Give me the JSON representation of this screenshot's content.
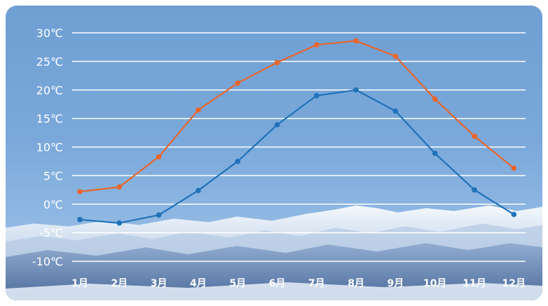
{
  "chart_data": {
    "type": "line",
    "categories": [
      "1月",
      "2月",
      "3月",
      "4月",
      "5月",
      "6月",
      "7月",
      "8月",
      "9月",
      "10月",
      "11月",
      "12月"
    ],
    "series": [
      {
        "values": [
          2.2,
          3.0,
          8.3,
          16.5,
          21.2,
          24.8,
          27.9,
          28.6,
          25.9,
          18.4,
          11.9,
          6.3
        ],
        "color": "#e8662c"
      },
      {
        "values": [
          -2.7,
          -3.3,
          -1.9,
          2.4,
          7.5,
          13.9,
          19.0,
          20.0,
          16.3,
          8.9,
          2.5,
          -1.8
        ],
        "color": "#1f72b9"
      }
    ],
    "yticks": [
      "30℃",
      "25℃",
      "20℃",
      "15℃",
      "10℃",
      "5℃",
      "0℃",
      "-5℃",
      "-10℃"
    ],
    "ylim": [
      -10,
      30
    ],
    "grid": true,
    "colors": {
      "text": "#ffffff",
      "grid": "#ffffff"
    }
  }
}
